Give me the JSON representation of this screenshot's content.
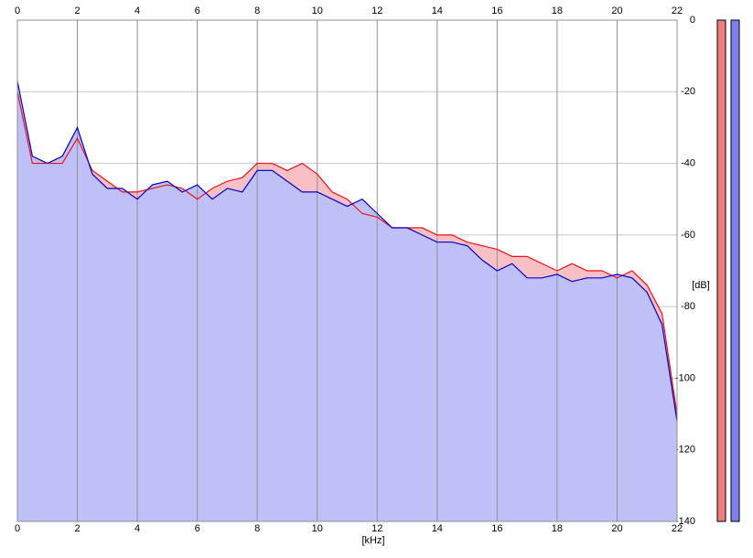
{
  "chart_data": {
    "type": "area",
    "x_label": "[kHz]",
    "y_label": "[dB]",
    "x": [
      0,
      0.5,
      1,
      1.5,
      2,
      2.5,
      3,
      3.5,
      4,
      4.5,
      5,
      5.5,
      6,
      6.5,
      7,
      7.5,
      8,
      8.5,
      9,
      9.5,
      10,
      10.5,
      11,
      11.5,
      12,
      12.5,
      13,
      13.5,
      14,
      14.5,
      15,
      15.5,
      16,
      16.5,
      17,
      17.5,
      18,
      18.5,
      19,
      19.5,
      20,
      20.5,
      21,
      21.5,
      22
    ],
    "series": [
      {
        "color": "#ee1111",
        "fill": "#f8c0c4",
        "values": [
          -20,
          -40,
          -40,
          -40,
          -33,
          -42,
          -45,
          -48,
          -48,
          -47,
          -46,
          -47,
          -50,
          -47,
          -45,
          -44,
          -40,
          -40,
          -42,
          -40,
          -43,
          -48,
          -50,
          -54,
          -55,
          -58,
          -58,
          -58,
          -60,
          -60,
          -62,
          -63,
          -64,
          -66,
          -66,
          -68,
          -70,
          -68,
          -70,
          -70,
          -72,
          -70,
          -74,
          -82,
          -110
        ]
      },
      {
        "color": "#0000cc",
        "fill": "#c0c0f8",
        "values": [
          -17,
          -38,
          -40,
          -38,
          -30,
          -43,
          -47,
          -47,
          -50,
          -46,
          -45,
          -48,
          -46,
          -50,
          -47,
          -48,
          -42,
          -42,
          -45,
          -48,
          -48,
          -50,
          -52,
          -50,
          -54,
          -58,
          -58,
          -60,
          -62,
          -62,
          -63,
          -67,
          -70,
          -68,
          -72,
          -72,
          -71,
          -73,
          -72,
          -72,
          -71,
          -72,
          -76,
          -85,
          -112
        ]
      }
    ],
    "xlim": [
      0,
      22
    ],
    "xticks": [
      0,
      2,
      4,
      6,
      8,
      10,
      12,
      14,
      16,
      18,
      20,
      22
    ],
    "ylim": [
      -140,
      0
    ],
    "yticks": [
      0,
      -20,
      -40,
      -60,
      -80,
      -100,
      -120,
      -140
    ],
    "grid": true
  }
}
